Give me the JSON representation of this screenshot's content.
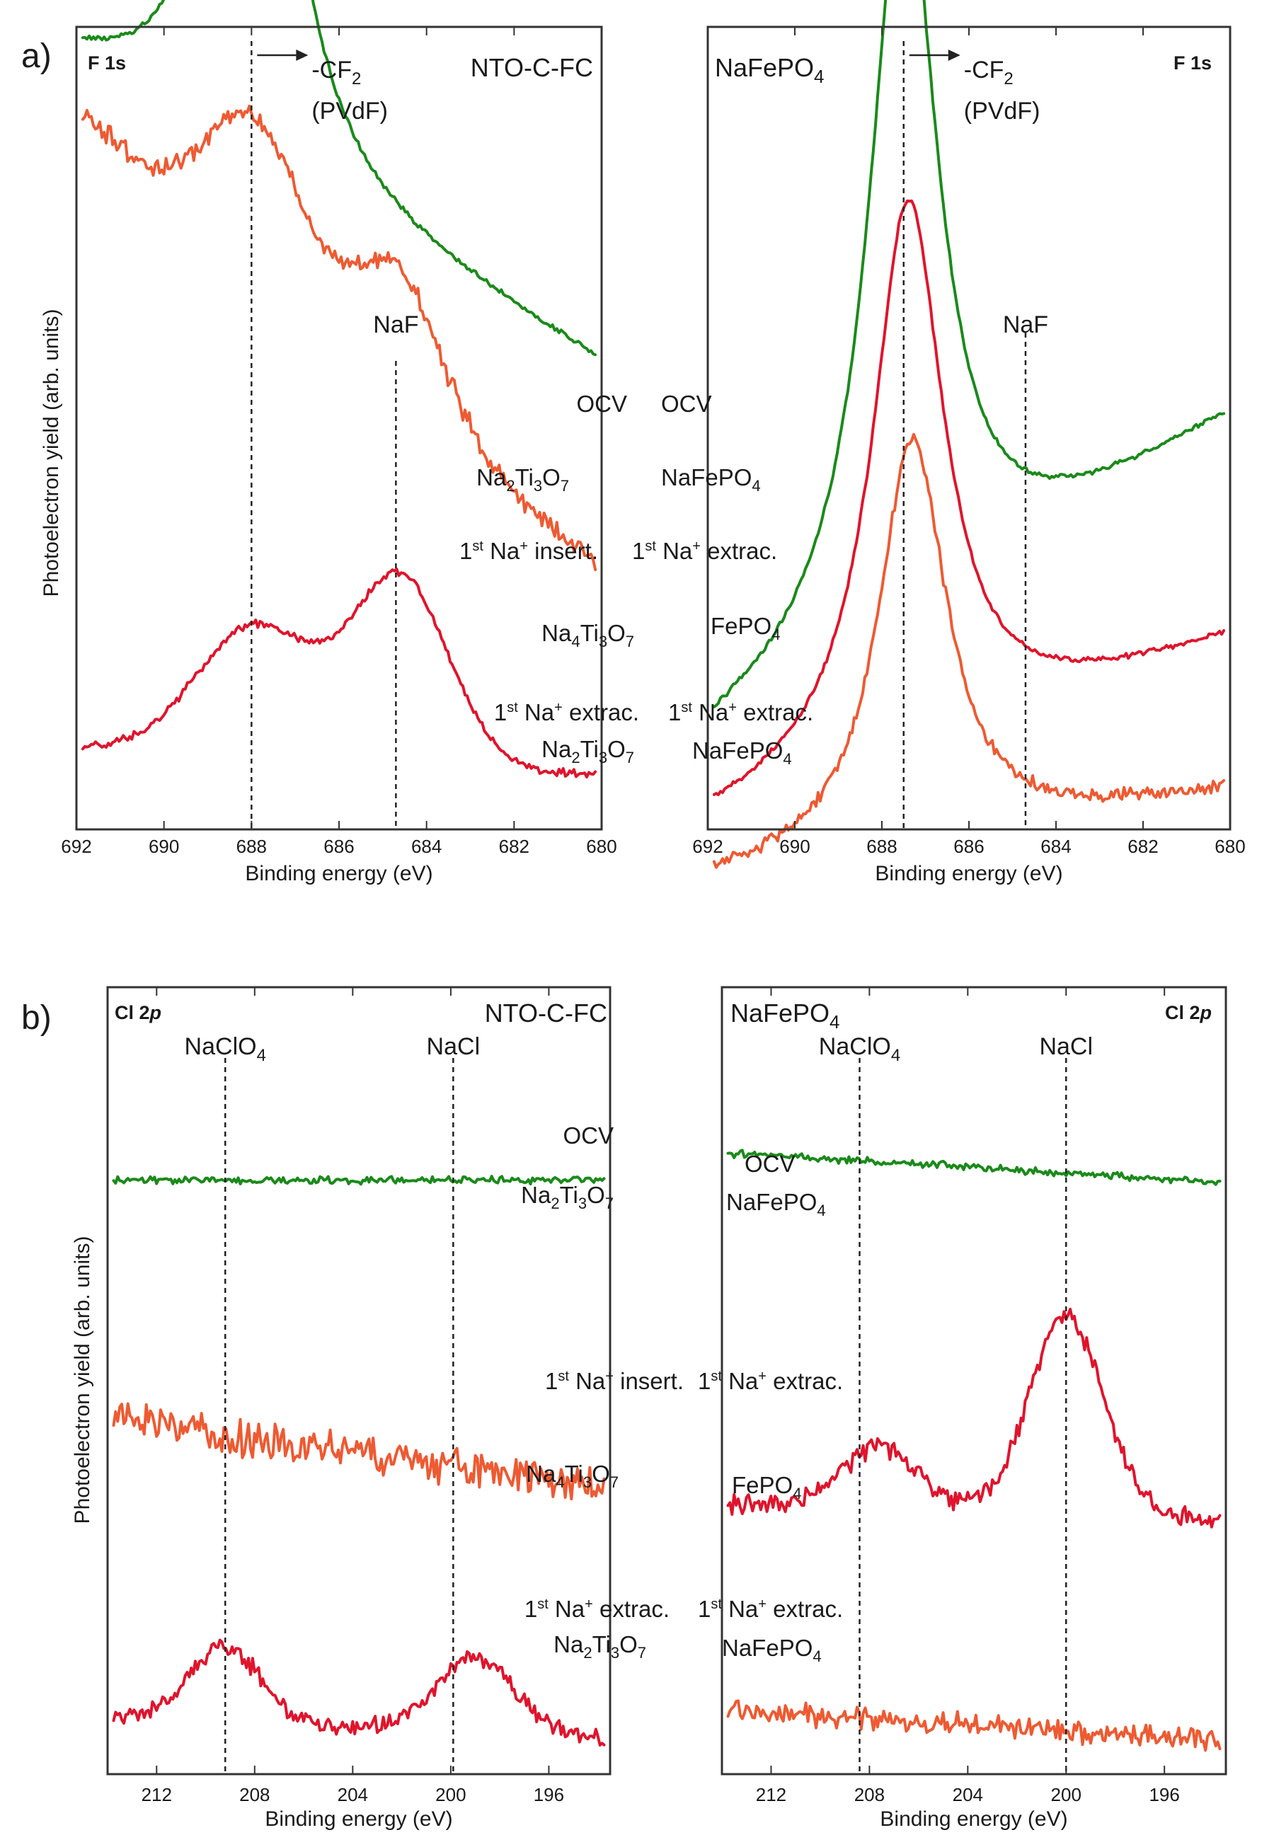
{
  "colors": {
    "green": "#1a8a1a",
    "coral": "#ee5a32",
    "red": "#e0142c",
    "axis": "#333333"
  },
  "chart_data": [
    {
      "id": "a-left",
      "type": "line",
      "panel": "a)",
      "core_level": "F 1s",
      "sample": "NTO-C-FC",
      "xlabel": "Binding energy (eV)",
      "ylabel": "Photoelectron yield (arb. units)",
      "xlim": [
        692,
        680
      ],
      "xticks": [
        "692",
        "690",
        "688",
        "686",
        "684",
        "682",
        "680"
      ],
      "peak_lines": [
        {
          "x": 688.0,
          "label_main": "-CF",
          "label_sub": "2",
          "label_line2": "(PVdF)",
          "arrow": true
        },
        {
          "x": 684.7,
          "label_main": "NaF",
          "label_sub": "",
          "label_line2": "",
          "arrow": false
        }
      ],
      "series": [
        {
          "name": "OCV",
          "state": "Na2Ti3O7",
          "color": "green",
          "baseline": 0.74,
          "offset": 0.58,
          "slope": 0.032,
          "noise": 0.004,
          "peaks": [
            {
              "c": 688.0,
              "h": 0.84,
              "w": 0.95,
              "shape": "lorentz"
            }
          ]
        },
        {
          "name": "1st Na+ insert.",
          "state": "Na4Ti3O7",
          "color": "coral",
          "baseline": 0.42,
          "offset": 0.315,
          "slope": 0.05,
          "noise": 0.016,
          "peaks": [
            {
              "c": 688.4,
              "h": 0.13,
              "w": 0.85,
              "shape": "gauss"
            },
            {
              "c": 687.3,
              "h": 0.11,
              "w": 0.8,
              "shape": "gauss"
            },
            {
              "c": 684.7,
              "h": 0.16,
              "w": 1.0,
              "shape": "gauss"
            }
          ]
        },
        {
          "name": "1st Na+ extrac.",
          "state": "Na2Ti3O7",
          "color": "red",
          "baseline": 0.1,
          "offset": 0.05,
          "slope": 0.003,
          "noise": 0.006,
          "peaks": [
            {
              "c": 687.9,
              "h": 0.17,
              "w": 1.35,
              "shape": "gauss"
            },
            {
              "c": 684.6,
              "h": 0.24,
              "w": 1.1,
              "shape": "gauss"
            }
          ]
        }
      ]
    },
    {
      "id": "a-right",
      "type": "line",
      "panel": "",
      "core_level": "F 1s",
      "sample": "NaFePO4",
      "xlabel": "Binding energy (eV)",
      "ylabel": "",
      "xlim": [
        692,
        680
      ],
      "xticks": [
        "692",
        "690",
        "688",
        "686",
        "684",
        "682",
        "680"
      ],
      "peak_lines": [
        {
          "x": 687.5,
          "label_main": "-CF",
          "label_sub": "2",
          "label_line2": "(PVdF)",
          "arrow": true
        },
        {
          "x": 684.7,
          "label_main": "NaF",
          "label_sub": "",
          "label_line2": "",
          "arrow": false
        }
      ],
      "series": [
        {
          "name": "OCV",
          "state": "NaFePO4",
          "color": "green",
          "baseline": 0.52,
          "offset": 0.51,
          "slope": -0.035,
          "noise": 0.004,
          "peaks": [
            {
              "c": 687.5,
              "h": 0.98,
              "w": 0.95,
              "shape": "lorentz"
            }
          ]
        },
        {
          "name": "1st Na+ extrac.",
          "state": "FePO4",
          "color": "red",
          "baseline": 0.23,
          "offset": 0.225,
          "slope": -0.02,
          "noise": 0.004,
          "peaks": [
            {
              "c": 687.4,
              "h": 0.72,
              "w": 1.0,
              "shape": "lorentz"
            }
          ]
        },
        {
          "name": "1st Na+ extrac.",
          "state": "NaFePO4",
          "color": "coral",
          "baseline": 0.02,
          "offset": 0.03,
          "slope": -0.01,
          "noise": 0.01,
          "peaks": [
            {
              "c": 687.3,
              "h": 0.53,
              "w": 0.95,
              "shape": "lorentz"
            }
          ]
        }
      ]
    },
    {
      "id": "b-left",
      "type": "line",
      "panel": "b)",
      "core_level": "Cl 2p",
      "sample": "NTO-C-FC",
      "xlabel": "Binding energy (eV)",
      "ylabel": "Photoelectron yield (arb. units)",
      "xlim": [
        214,
        193.5
      ],
      "xticks": [
        "212",
        "208",
        "204",
        "200",
        "196"
      ],
      "peak_lines": [
        {
          "x": 209.2,
          "label_main": "NaClO",
          "label_sub": "4",
          "label_line2": "",
          "arrow": false
        },
        {
          "x": 199.9,
          "label_main": "NaCl",
          "label_sub": "",
          "label_line2": "",
          "arrow": false
        }
      ],
      "series": [
        {
          "name": "OCV",
          "state": "Na2Ti3O7",
          "color": "green",
          "baseline": 0.77,
          "offset": 0.765,
          "slope": 0.0,
          "noise": 0.006,
          "peaks": []
        },
        {
          "name": "1st Na+ insert.",
          "state": "Na4Ti3O7",
          "color": "coral",
          "baseline": 0.44,
          "offset": 0.36,
          "slope": 0.0045,
          "noise": 0.03,
          "peaks": []
        },
        {
          "name": "1st Na+ extrac.",
          "state": "Na2Ti3O7",
          "color": "red",
          "baseline": 0.06,
          "offset": 0.03,
          "slope": 0.0015,
          "noise": 0.014,
          "peaks": [
            {
              "c": 209.2,
              "h": 0.1,
              "w": 1.4,
              "shape": "gauss"
            },
            {
              "c": 199.0,
              "h": 0.1,
              "w": 1.6,
              "shape": "gauss"
            }
          ]
        }
      ]
    },
    {
      "id": "b-right",
      "type": "line",
      "panel": "",
      "core_level": "Cl 2p",
      "sample": "NaFePO4",
      "xlabel": "Binding energy (eV)",
      "ylabel": "",
      "xlim": [
        214,
        193.5
      ],
      "xticks": [
        "212",
        "208",
        "204",
        "200",
        "196"
      ],
      "peak_lines": [
        {
          "x": 208.4,
          "label_main": "NaClO",
          "label_sub": "4",
          "label_line2": "",
          "arrow": false
        },
        {
          "x": 200.0,
          "label_main": "NaCl",
          "label_sub": "",
          "label_line2": "",
          "arrow": false
        }
      ],
      "series": [
        {
          "name": "OCV",
          "state": "NaFePO4",
          "color": "green",
          "baseline": 0.8,
          "offset": 0.762,
          "slope": 0.0019,
          "noise": 0.006,
          "peaks": []
        },
        {
          "name": "1st Na+ extrac.",
          "state": "FePO4",
          "color": "red",
          "baseline": 0.37,
          "offset": 0.32,
          "slope": 0.001,
          "noise": 0.016,
          "peaks": [
            {
              "c": 207.5,
              "h": 0.08,
              "w": 1.5,
              "shape": "gauss"
            },
            {
              "c": 200.0,
              "h": 0.26,
              "w": 1.5,
              "shape": "gauss"
            }
          ]
        },
        {
          "name": "1st Na+ extrac.",
          "state": "NaFePO4",
          "color": "coral",
          "baseline": 0.07,
          "offset": 0.03,
          "slope": 0.0018,
          "noise": 0.018,
          "peaks": []
        }
      ]
    }
  ]
}
